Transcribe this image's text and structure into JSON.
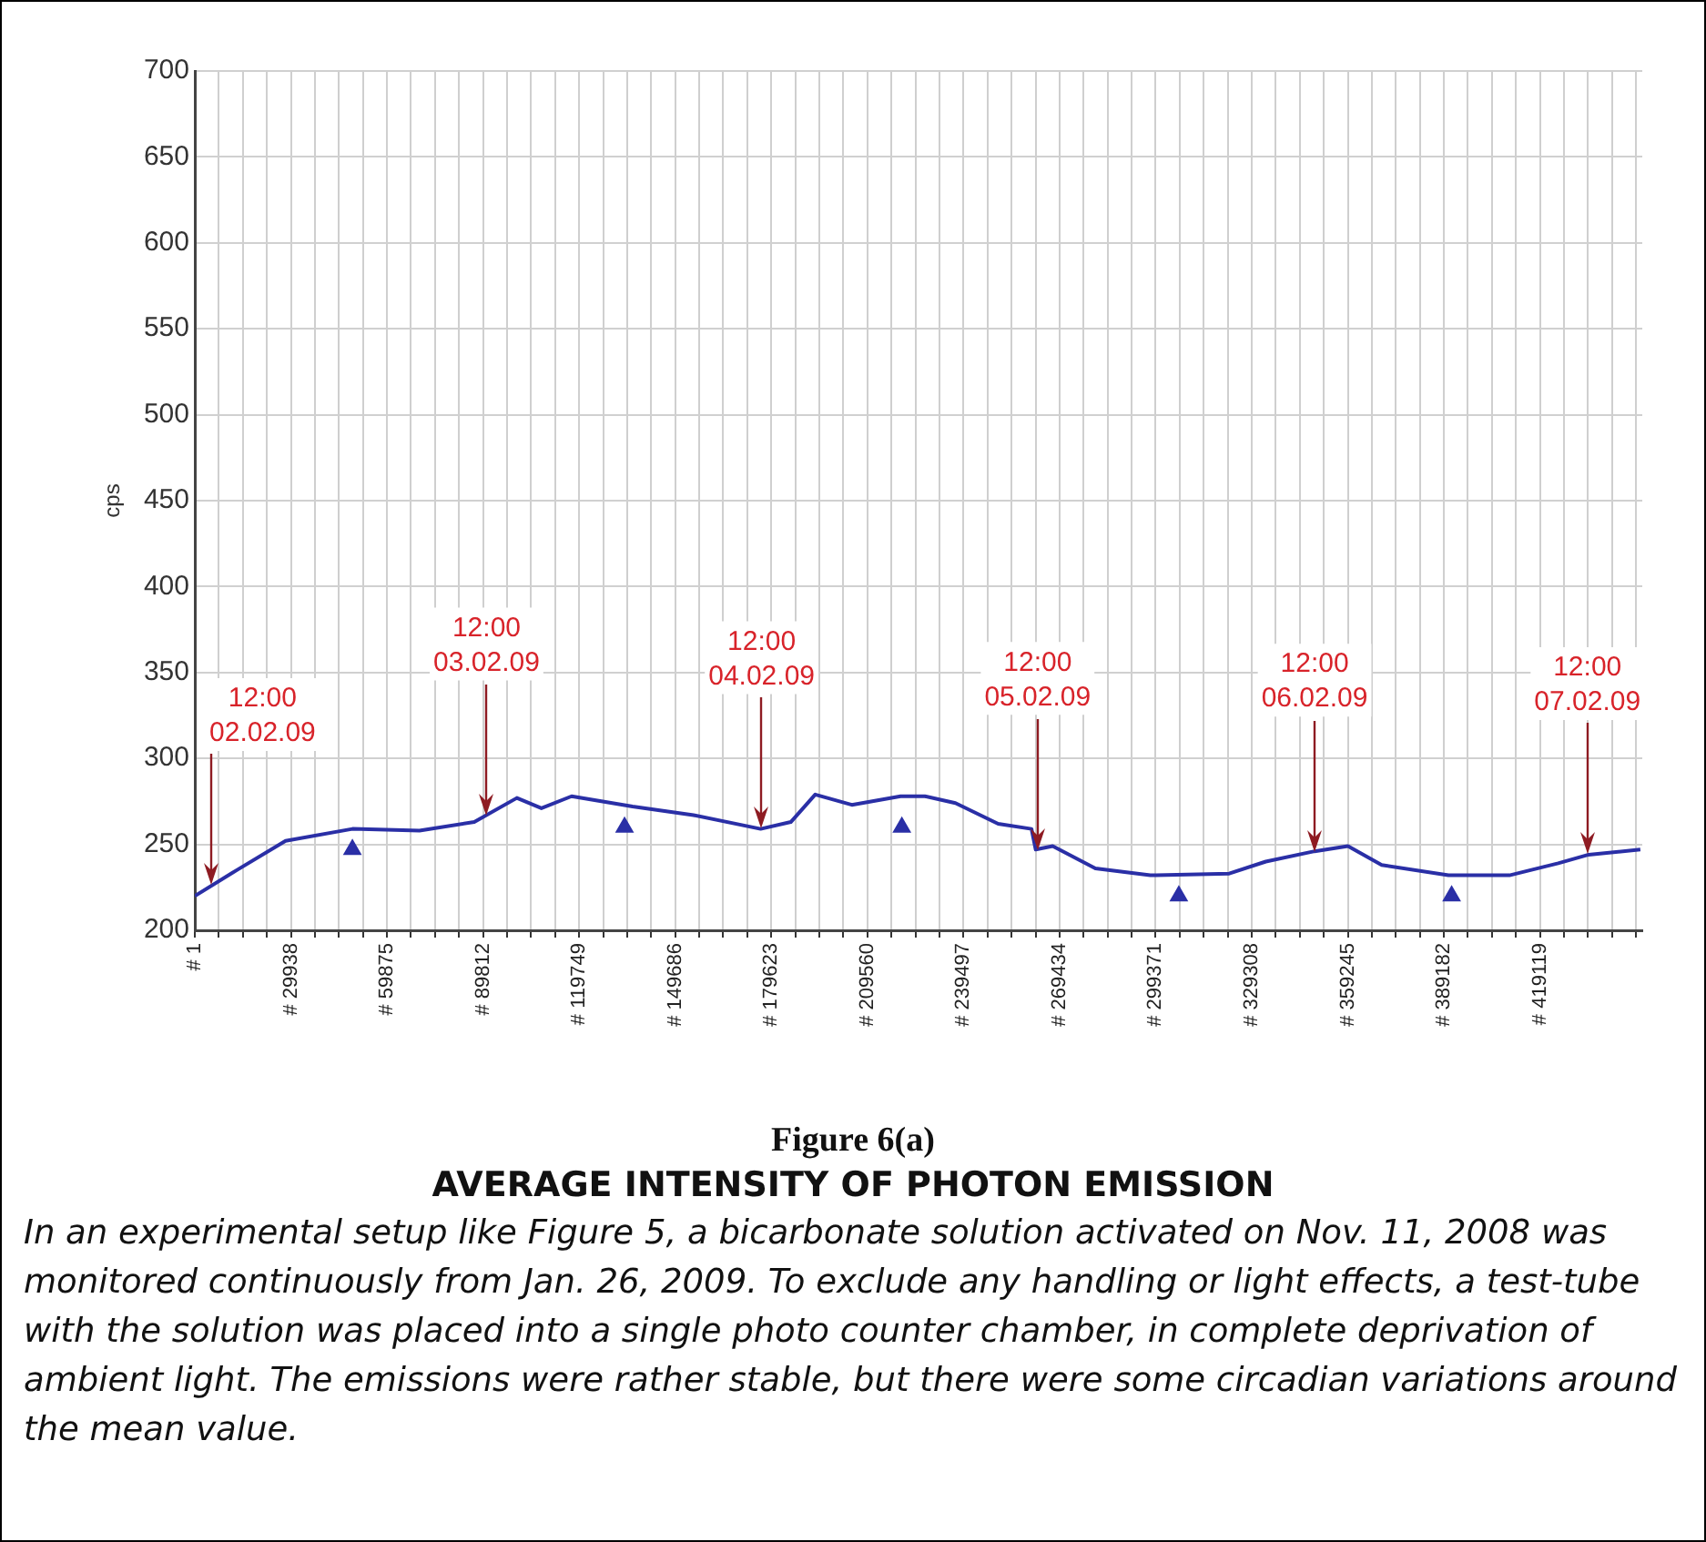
{
  "chart_data": {
    "type": "line",
    "title": "Figure 6(a)",
    "subtitle": "AVERAGE INTENSITY OF PHOTON EMISSION",
    "ylabel": "cps",
    "x": [
      1,
      13090,
      28280,
      49120,
      70000,
      87080,
      100350,
      108000,
      117400,
      136400,
      155400,
      176300,
      185700,
      193300,
      204700,
      219900,
      227500,
      237000,
      250300,
      260700,
      262000,
      267300,
      280600,
      297700,
      322300,
      333700,
      348900,
      359300,
      369800,
      390600,
      409600,
      424800,
      434300,
      450400
    ],
    "series": [
      {
        "color": "#2a2fa6",
        "values": [
          220,
          235,
          252,
          259,
          258,
          263,
          277,
          271,
          278,
          272,
          267,
          259,
          263,
          279,
          273,
          278,
          278,
          274,
          262,
          259,
          247,
          249,
          236,
          232,
          233,
          240,
          246,
          249,
          238,
          232,
          232,
          239,
          244,
          247
        ]
      },
      {
        "type": "scatter",
        "marker": "triangle",
        "color": "#2a2fa6",
        "x": [
          49100,
          133900,
          220300,
          306600,
          391600
        ],
        "values": [
          247,
          260,
          260,
          220,
          220
        ]
      }
    ],
    "xlim": [
      1,
      451000
    ],
    "xticks": [
      {
        "value": 1,
        "label": "# 1"
      },
      {
        "value": 7485.25,
        "label": null
      },
      {
        "value": 14969.5,
        "label": null
      },
      {
        "value": 22453.75,
        "label": null
      },
      {
        "value": 29938,
        "label": "# 29938"
      },
      {
        "value": 37422.25,
        "label": null
      },
      {
        "value": 44906.5,
        "label": null
      },
      {
        "value": 52390.75,
        "label": null
      },
      {
        "value": 59875,
        "label": "# 59875"
      },
      {
        "value": 67359.25,
        "label": null
      },
      {
        "value": 74843.5,
        "label": null
      },
      {
        "value": 82327.75,
        "label": null
      },
      {
        "value": 89812,
        "label": "# 89812"
      },
      {
        "value": 97296.25,
        "label": null
      },
      {
        "value": 104780.5,
        "label": null
      },
      {
        "value": 112264.75,
        "label": null
      },
      {
        "value": 119749,
        "label": "# 119749"
      },
      {
        "value": 127233.25,
        "label": null
      },
      {
        "value": 134717.5,
        "label": null
      },
      {
        "value": 142201.75,
        "label": null
      },
      {
        "value": 149686,
        "label": "# 149686"
      },
      {
        "value": 157170.25,
        "label": null
      },
      {
        "value": 164654.5,
        "label": null
      },
      {
        "value": 172138.75,
        "label": null
      },
      {
        "value": 179623,
        "label": "# 179623"
      },
      {
        "value": 187107.25,
        "label": null
      },
      {
        "value": 194591.5,
        "label": null
      },
      {
        "value": 202075.75,
        "label": null
      },
      {
        "value": 209560,
        "label": "# 209560"
      },
      {
        "value": 217044.25,
        "label": null
      },
      {
        "value": 224528.5,
        "label": null
      },
      {
        "value": 232012.75,
        "label": null
      },
      {
        "value": 239497,
        "label": "# 239497"
      },
      {
        "value": 246981.25,
        "label": null
      },
      {
        "value": 254465.5,
        "label": null
      },
      {
        "value": 261949.75,
        "label": null
      },
      {
        "value": 269434,
        "label": "# 269434"
      },
      {
        "value": 276918.25,
        "label": null
      },
      {
        "value": 284402.5,
        "label": null
      },
      {
        "value": 291886.75,
        "label": null
      },
      {
        "value": 299371,
        "label": "# 299371"
      },
      {
        "value": 306855.25,
        "label": null
      },
      {
        "value": 314339.5,
        "label": null
      },
      {
        "value": 321823.75,
        "label": null
      },
      {
        "value": 329308,
        "label": "# 329308"
      },
      {
        "value": 336792.25,
        "label": null
      },
      {
        "value": 344276.5,
        "label": null
      },
      {
        "value": 351760.75,
        "label": null
      },
      {
        "value": 359245,
        "label": "# 359245"
      },
      {
        "value": 366729.25,
        "label": null
      },
      {
        "value": 374213.5,
        "label": null
      },
      {
        "value": 381697.75,
        "label": null
      },
      {
        "value": 389182,
        "label": "# 389182"
      },
      {
        "value": 396666.25,
        "label": null
      },
      {
        "value": 404150.5,
        "label": null
      },
      {
        "value": 411634.75,
        "label": null
      },
      {
        "value": 419119,
        "label": "# 419119"
      },
      {
        "value": 426603.25,
        "label": null
      },
      {
        "value": 434087.5,
        "label": null
      },
      {
        "value": 441571.75,
        "label": null
      },
      {
        "value": 449056,
        "label": null
      }
    ],
    "ylim": [
      200,
      700
    ],
    "yticks": [
      200,
      250,
      300,
      350,
      400,
      450,
      500,
      550,
      600,
      650,
      700
    ],
    "grid": true,
    "legend": false,
    "marker": "none",
    "line_style": "solid",
    "annotations": [
      {
        "text": "12:00 02.02.09",
        "x": 5120,
        "y": 226
      },
      {
        "text": "12:00 03.02.09",
        "x": 90900,
        "y": 267
      },
      {
        "text": "12:00 04.02.09",
        "x": 176600,
        "y": 259
      },
      {
        "text": "12:00 05.02.09",
        "x": 262600,
        "y": 247
      },
      {
        "text": "12:00 06.02.09",
        "x": 348900,
        "y": 246
      },
      {
        "text": "12:00 07.02.09",
        "x": 433900,
        "y": 244
      },
      "In an experimental setup like Figure 5, a bicarbonate solution activated on Nov. 11, 2008 was monitored continuously from Jan. 26, 2009. To exclude any handling or light effects, a test-tube with the solution was placed into a single photo counter chamber, in complete deprivation of ambient light. The emissions were rather stable, but there were some circadian variations around the mean value."
    ]
  }
}
